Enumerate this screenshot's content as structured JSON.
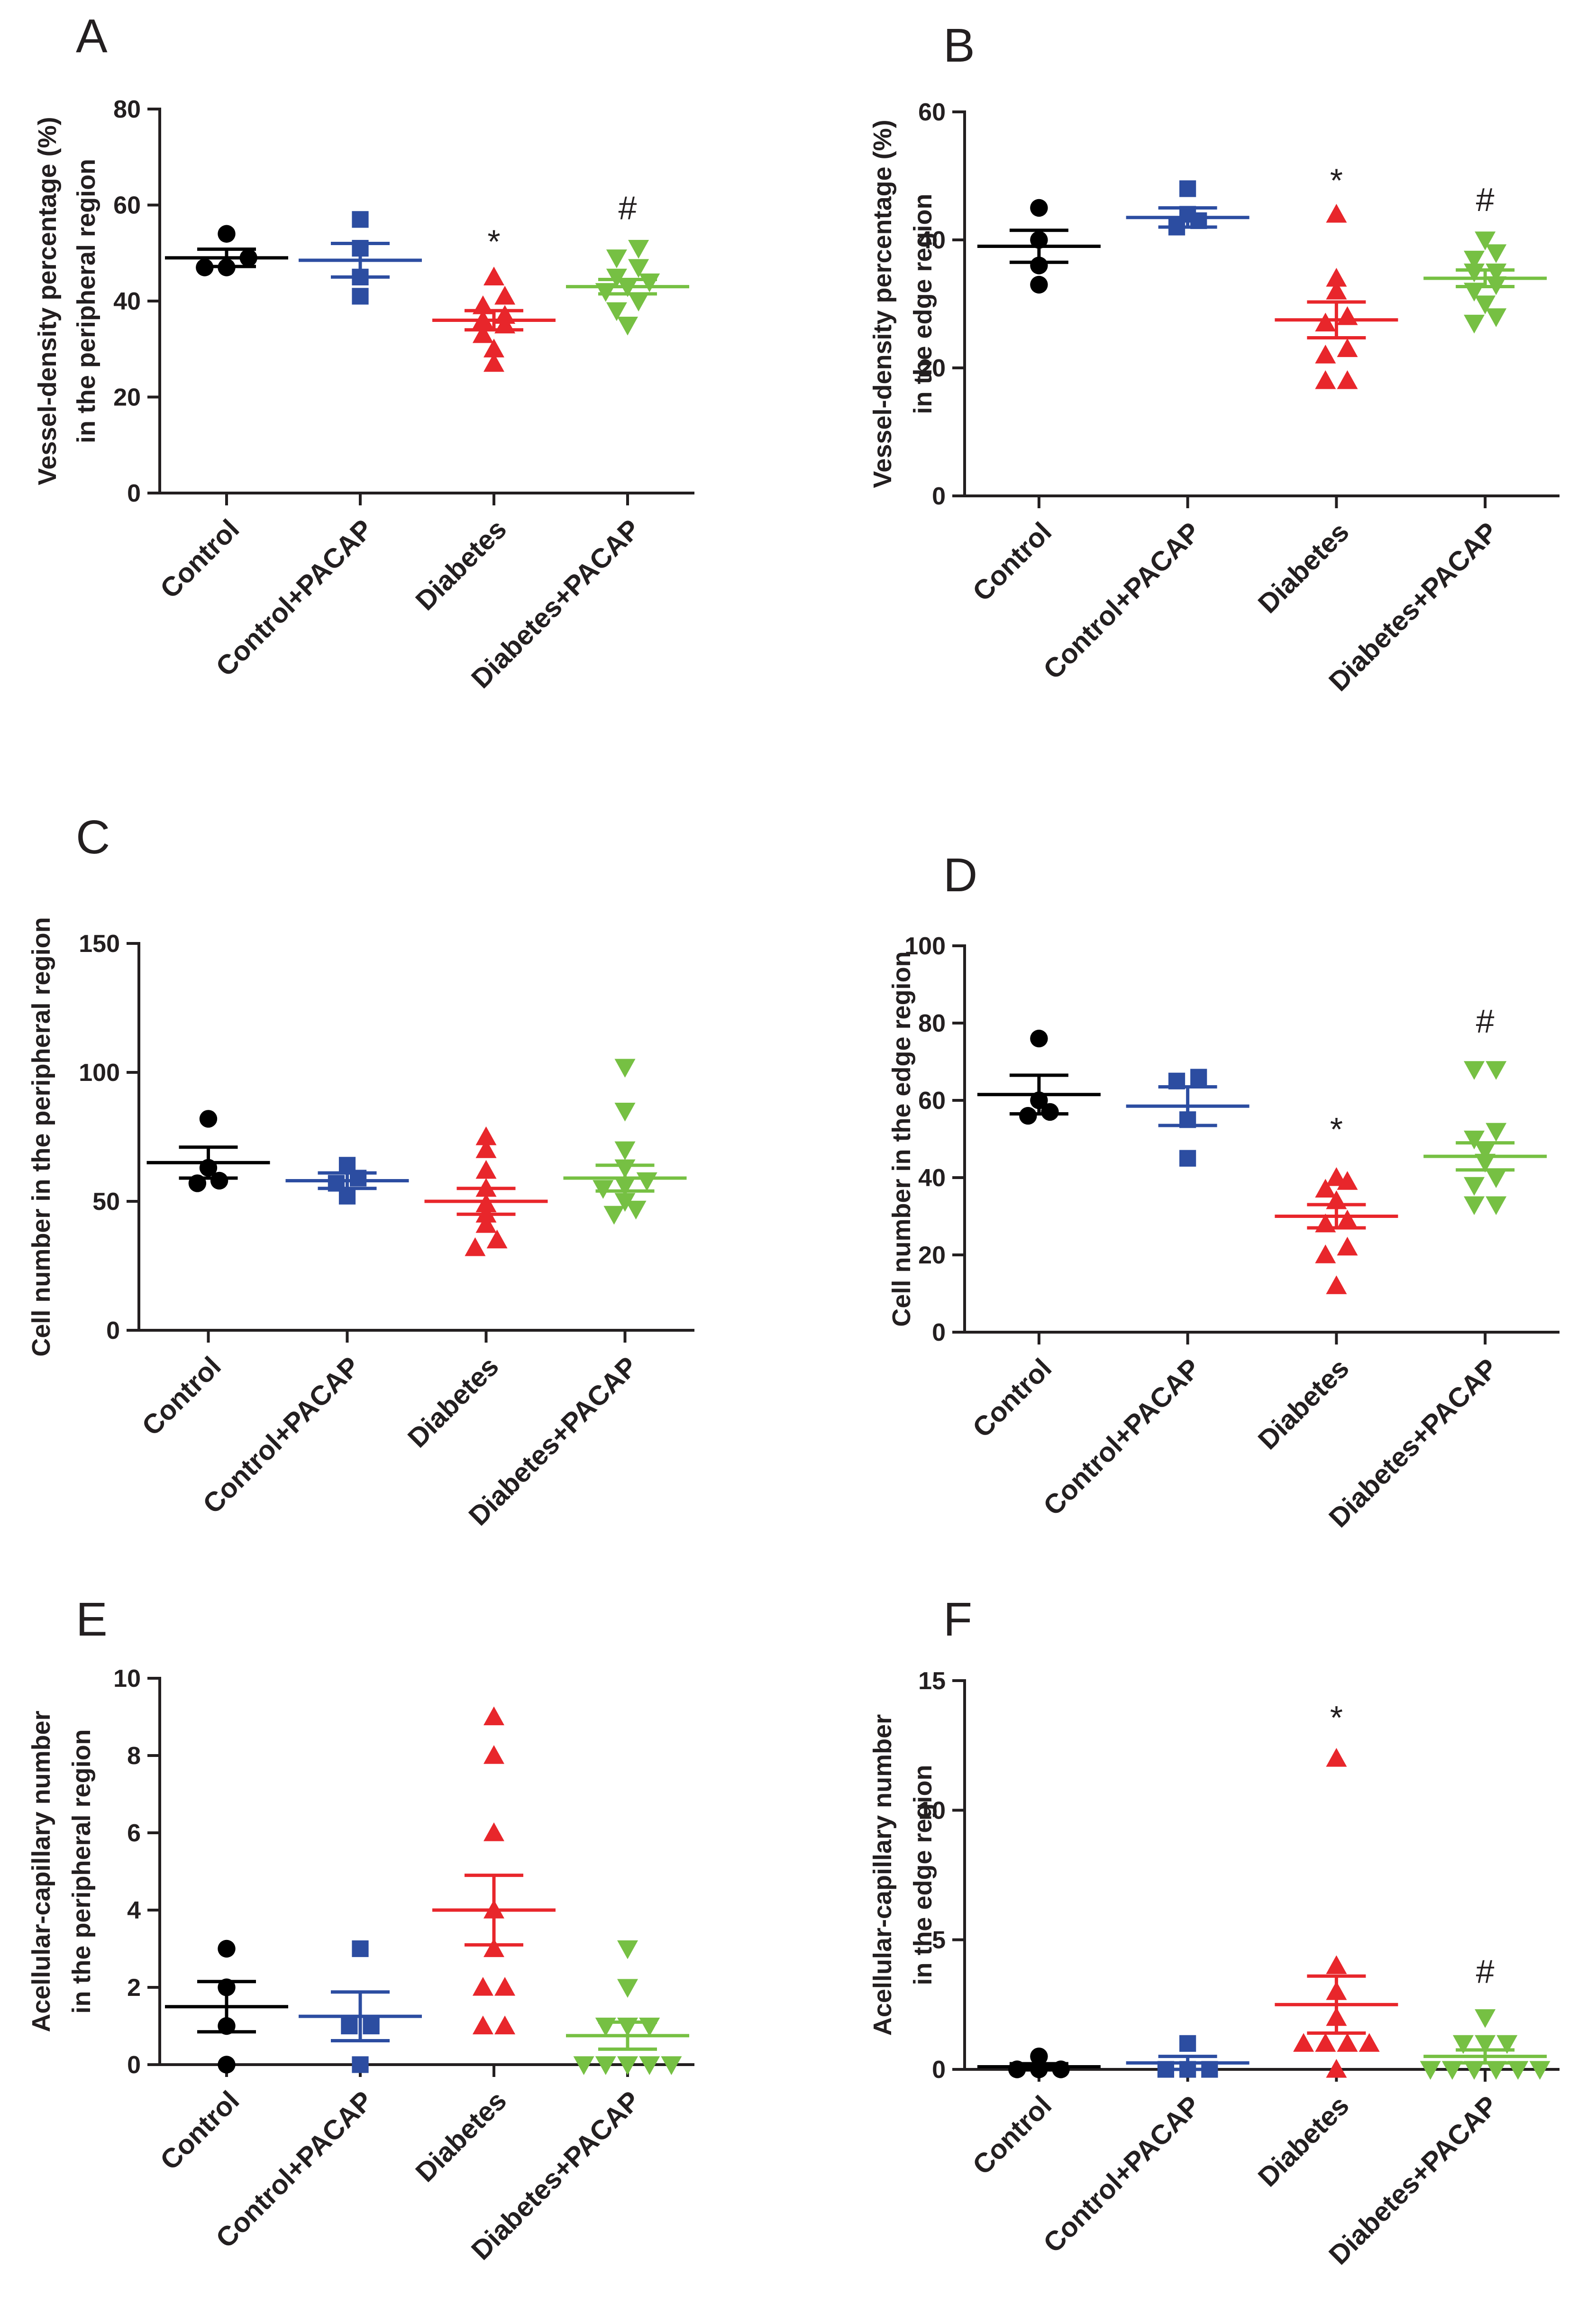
{
  "colors": {
    "Control": "#000000",
    "Control+PACAP": "#2c4da1",
    "Diabetes": "#e8262b",
    "Diabetes+PACAP": "#76c043"
  },
  "chart_data": [
    {
      "id": "A",
      "type": "scatter",
      "letter": "A",
      "ylabel": [
        "Vessel-density percentage (%)",
        "in the peripheral region"
      ],
      "ylim": [
        0,
        80
      ],
      "yticks": [
        "0",
        "20",
        "40",
        "60",
        "80"
      ],
      "categories": [
        "Control",
        "Control+PACAP",
        "Diabetes",
        "Diabetes+PACAP"
      ],
      "series": [
        {
          "name": "Control",
          "marker": "circle",
          "values": [
            54,
            47,
            47,
            49
          ],
          "mean": 49,
          "sem": 1.8
        },
        {
          "name": "Control+PACAP",
          "marker": "square",
          "values": [
            57,
            51,
            45,
            41
          ],
          "mean": 48.5,
          "sem": 3.5
        },
        {
          "name": "Diabetes",
          "marker": "triangle-up",
          "values": [
            45,
            41,
            39,
            37,
            36,
            35,
            33,
            30,
            27
          ],
          "mean": 36,
          "sem": 2
        },
        {
          "name": "Diabetes+PACAP",
          "marker": "triangle-down",
          "values": [
            51,
            49,
            47,
            45,
            44,
            43,
            42,
            40,
            38,
            35
          ],
          "mean": 43,
          "sem": 1.5
        }
      ],
      "annotations": [
        {
          "category": "Diabetes",
          "text": "*",
          "y": 52
        },
        {
          "category": "Diabetes+PACAP",
          "text": "#",
          "y": 59
        }
      ]
    },
    {
      "id": "B",
      "type": "scatter",
      "letter": "B",
      "ylabel": [
        "Vessel-density percentage (%)",
        "in the edge region"
      ],
      "ylim": [
        0,
        60
      ],
      "yticks": [
        "0",
        "20",
        "40",
        "60"
      ],
      "categories": [
        "Control",
        "Control+PACAP",
        "Diabetes",
        "Diabetes+PACAP"
      ],
      "series": [
        {
          "name": "Control",
          "marker": "circle",
          "values": [
            45,
            40,
            36,
            33
          ],
          "mean": 39,
          "sem": 2.5
        },
        {
          "name": "Control+PACAP",
          "marker": "square",
          "values": [
            48,
            44,
            43,
            42
          ],
          "mean": 43.5,
          "sem": 1.5
        },
        {
          "name": "Diabetes",
          "marker": "triangle-up",
          "values": [
            44,
            34,
            32,
            28,
            27,
            23,
            22,
            18,
            18
          ],
          "mean": 27.5,
          "sem": 2.8
        },
        {
          "name": "Diabetes+PACAP",
          "marker": "triangle-down",
          "values": [
            40,
            38,
            37,
            35,
            35,
            33,
            32,
            30,
            28,
            27
          ],
          "mean": 34,
          "sem": 1.3
        }
      ],
      "annotations": [
        {
          "category": "Diabetes",
          "text": "*",
          "y": 49
        },
        {
          "category": "Diabetes+PACAP",
          "text": "#",
          "y": 46
        }
      ]
    },
    {
      "id": "C",
      "type": "scatter",
      "letter": "C",
      "ylabel": [
        "Cell number  in the peripheral region"
      ],
      "ylim": [
        0,
        150
      ],
      "yticks": [
        "0",
        "50",
        "100",
        "150"
      ],
      "categories": [
        "Control",
        "Control+PACAP",
        "Diabetes",
        "Diabetes+PACAP"
      ],
      "series": [
        {
          "name": "Control",
          "marker": "circle",
          "values": [
            82,
            63,
            58,
            57
          ],
          "mean": 65,
          "sem": 6
        },
        {
          "name": "Control+PACAP",
          "marker": "square",
          "values": [
            64,
            59,
            57,
            52
          ],
          "mean": 58,
          "sem": 3
        },
        {
          "name": "Diabetes",
          "marker": "triangle-up",
          "values": [
            75,
            70,
            62,
            55,
            49,
            45,
            41,
            35,
            32
          ],
          "mean": 50,
          "sem": 5
        },
        {
          "name": "Diabetes+PACAP",
          "marker": "triangle-down",
          "values": [
            102,
            85,
            70,
            63,
            58,
            56,
            55,
            50,
            47,
            45
          ],
          "mean": 59,
          "sem": 5
        }
      ],
      "annotations": []
    },
    {
      "id": "D",
      "type": "scatter",
      "letter": "D",
      "ylabel": [
        "Cell number  in the edge region"
      ],
      "ylim": [
        0,
        100
      ],
      "yticks": [
        "0",
        "20",
        "40",
        "60",
        "80",
        "100"
      ],
      "categories": [
        "Control",
        "Control+PACAP",
        "Diabetes",
        "Diabetes+PACAP"
      ],
      "series": [
        {
          "name": "Control",
          "marker": "circle",
          "values": [
            76,
            60,
            57,
            56
          ],
          "mean": 61.5,
          "sem": 5
        },
        {
          "name": "Control+PACAP",
          "marker": "square",
          "values": [
            66,
            65,
            55,
            45
          ],
          "mean": 58.5,
          "sem": 5
        },
        {
          "name": "Diabetes",
          "marker": "triangle-up",
          "values": [
            40,
            39,
            37,
            34,
            29,
            28,
            22,
            20,
            12
          ],
          "mean": 30,
          "sem": 3
        },
        {
          "name": "Diabetes+PACAP",
          "marker": "triangle-down",
          "values": [
            68,
            68,
            52,
            50,
            47,
            44,
            40,
            38,
            33,
            33
          ],
          "mean": 45.5,
          "sem": 3.5
        }
      ],
      "annotations": [
        {
          "category": "Diabetes",
          "text": "*",
          "y": 52
        },
        {
          "category": "Diabetes+PACAP",
          "text": "#",
          "y": 80
        }
      ]
    },
    {
      "id": "E",
      "type": "scatter",
      "letter": "E",
      "ylabel": [
        "Acellular-capillary number",
        "in the peripheral region"
      ],
      "ylim": [
        0,
        10
      ],
      "yticks": [
        "0",
        "2",
        "4",
        "6",
        "8",
        "10"
      ],
      "categories": [
        "Control",
        "Control+PACAP",
        "Diabetes",
        "Diabetes+PACAP"
      ],
      "series": [
        {
          "name": "Control",
          "marker": "circle",
          "values": [
            3,
            2,
            1,
            0
          ],
          "mean": 1.5,
          "sem": 0.65
        },
        {
          "name": "Control+PACAP",
          "marker": "square",
          "values": [
            3,
            1,
            1,
            0
          ],
          "mean": 1.25,
          "sem": 0.63
        },
        {
          "name": "Diabetes",
          "marker": "triangle-up",
          "values": [
            9,
            8,
            6,
            4,
            3,
            2,
            2,
            1,
            1
          ],
          "mean": 4,
          "sem": 0.9
        },
        {
          "name": "Diabetes+PACAP",
          "marker": "triangle-down",
          "values": [
            3,
            2,
            1,
            1,
            1,
            0,
            0,
            0,
            0,
            0
          ],
          "mean": 0.75,
          "sem": 0.35
        }
      ],
      "annotations": []
    },
    {
      "id": "F",
      "type": "scatter",
      "letter": "F",
      "ylabel": [
        "Acellular-capillary number",
        "in the edge region"
      ],
      "ylim": [
        0,
        15
      ],
      "yticks": [
        "0",
        "5",
        "10",
        "15"
      ],
      "categories": [
        "Control",
        "Control+PACAP",
        "Diabetes",
        "Diabetes+PACAP"
      ],
      "series": [
        {
          "name": "Control",
          "marker": "circle",
          "values": [
            0.5,
            0,
            0,
            0
          ],
          "mean": 0.1,
          "sem": 0.12
        },
        {
          "name": "Control+PACAP",
          "marker": "square",
          "values": [
            1,
            0,
            0,
            0
          ],
          "mean": 0.25,
          "sem": 0.25
        },
        {
          "name": "Diabetes",
          "marker": "triangle-up",
          "values": [
            12,
            4,
            3,
            2,
            1,
            1,
            1,
            1,
            0
          ],
          "mean": 2.5,
          "sem": 1.1
        },
        {
          "name": "Diabetes+PACAP",
          "marker": "triangle-down",
          "values": [
            2,
            1,
            1,
            1,
            0,
            0,
            0,
            0,
            0,
            0
          ],
          "mean": 0.5,
          "sem": 0.25
        }
      ],
      "annotations": [
        {
          "category": "Diabetes",
          "text": "*",
          "y": 13.5
        },
        {
          "category": "Diabetes+PACAP",
          "text": "#",
          "y": 3.7
        }
      ]
    }
  ]
}
